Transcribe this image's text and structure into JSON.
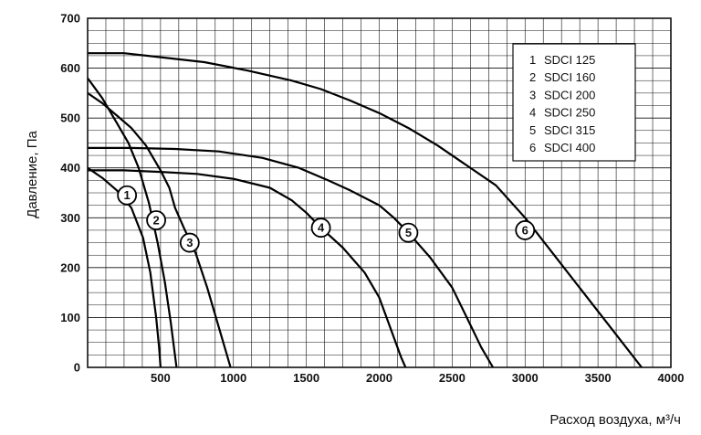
{
  "chart_data": {
    "type": "line",
    "title": "",
    "xlabel": "Расход воздуха, м³/ч",
    "ylabel": "Давление, Па",
    "xlim": [
      0,
      4000
    ],
    "ylim": [
      0,
      700
    ],
    "x_ticks": [
      "500",
      "1000",
      "1500",
      "2000",
      "2500",
      "3000",
      "3500",
      "4000"
    ],
    "y_ticks": [
      "0",
      "100",
      "200",
      "300",
      "400",
      "500",
      "600",
      "700"
    ],
    "grid": true,
    "legend_position": "top-right",
    "legend": [
      {
        "num": "1",
        "label": "SDCI 125"
      },
      {
        "num": "2",
        "label": "SDCI 160"
      },
      {
        "num": "3",
        "label": "SDCI 200"
      },
      {
        "num": "4",
        "label": "SDCI 250"
      },
      {
        "num": "5",
        "label": "SDCI 315"
      },
      {
        "num": "6",
        "label": "SDCI 400"
      }
    ],
    "series": [
      {
        "name": "1",
        "marker": [
          270,
          345
        ],
        "points": [
          [
            0,
            400
          ],
          [
            100,
            380
          ],
          [
            200,
            355
          ],
          [
            300,
            320
          ],
          [
            380,
            260
          ],
          [
            430,
            190
          ],
          [
            470,
            100
          ],
          [
            490,
            40
          ],
          [
            500,
            0
          ]
        ]
      },
      {
        "name": "2",
        "marker": [
          470,
          295
        ],
        "points": [
          [
            0,
            580
          ],
          [
            100,
            540
          ],
          [
            200,
            490
          ],
          [
            280,
            450
          ],
          [
            350,
            400
          ],
          [
            420,
            330
          ],
          [
            480,
            250
          ],
          [
            530,
            170
          ],
          [
            570,
            90
          ],
          [
            610,
            0
          ]
        ]
      },
      {
        "name": "3",
        "marker": [
          700,
          250
        ],
        "points": [
          [
            0,
            550
          ],
          [
            100,
            530
          ],
          [
            200,
            505
          ],
          [
            300,
            480
          ],
          [
            400,
            445
          ],
          [
            500,
            395
          ],
          [
            560,
            360
          ],
          [
            600,
            320
          ],
          [
            660,
            280
          ],
          [
            740,
            230
          ],
          [
            820,
            160
          ],
          [
            900,
            80
          ],
          [
            980,
            0
          ]
        ]
      },
      {
        "name": "4",
        "marker": [
          1600,
          280
        ],
        "points": [
          [
            0,
            395
          ],
          [
            250,
            395
          ],
          [
            500,
            392
          ],
          [
            750,
            388
          ],
          [
            1000,
            378
          ],
          [
            1250,
            360
          ],
          [
            1400,
            335
          ],
          [
            1500,
            310
          ],
          [
            1600,
            280
          ],
          [
            1750,
            240
          ],
          [
            1900,
            190
          ],
          [
            2000,
            140
          ],
          [
            2050,
            100
          ],
          [
            2100,
            60
          ],
          [
            2150,
            20
          ],
          [
            2180,
            0
          ]
        ]
      },
      {
        "name": "5",
        "marker": [
          2200,
          270
        ],
        "points": [
          [
            0,
            440
          ],
          [
            300,
            440
          ],
          [
            600,
            438
          ],
          [
            900,
            433
          ],
          [
            1200,
            420
          ],
          [
            1450,
            400
          ],
          [
            1650,
            375
          ],
          [
            1800,
            355
          ],
          [
            2000,
            325
          ],
          [
            2100,
            300
          ],
          [
            2200,
            270
          ],
          [
            2350,
            220
          ],
          [
            2500,
            160
          ],
          [
            2600,
            100
          ],
          [
            2700,
            40
          ],
          [
            2780,
            0
          ]
        ]
      },
      {
        "name": "6",
        "marker": [
          3000,
          275
        ],
        "points": [
          [
            0,
            630
          ],
          [
            250,
            630
          ],
          [
            500,
            622
          ],
          [
            800,
            612
          ],
          [
            1100,
            595
          ],
          [
            1400,
            575
          ],
          [
            1600,
            558
          ],
          [
            1800,
            535
          ],
          [
            2000,
            510
          ],
          [
            2200,
            480
          ],
          [
            2400,
            445
          ],
          [
            2600,
            405
          ],
          [
            2800,
            365
          ],
          [
            3000,
            300
          ],
          [
            3200,
            225
          ],
          [
            3400,
            150
          ],
          [
            3600,
            75
          ],
          [
            3800,
            0
          ]
        ]
      }
    ]
  }
}
